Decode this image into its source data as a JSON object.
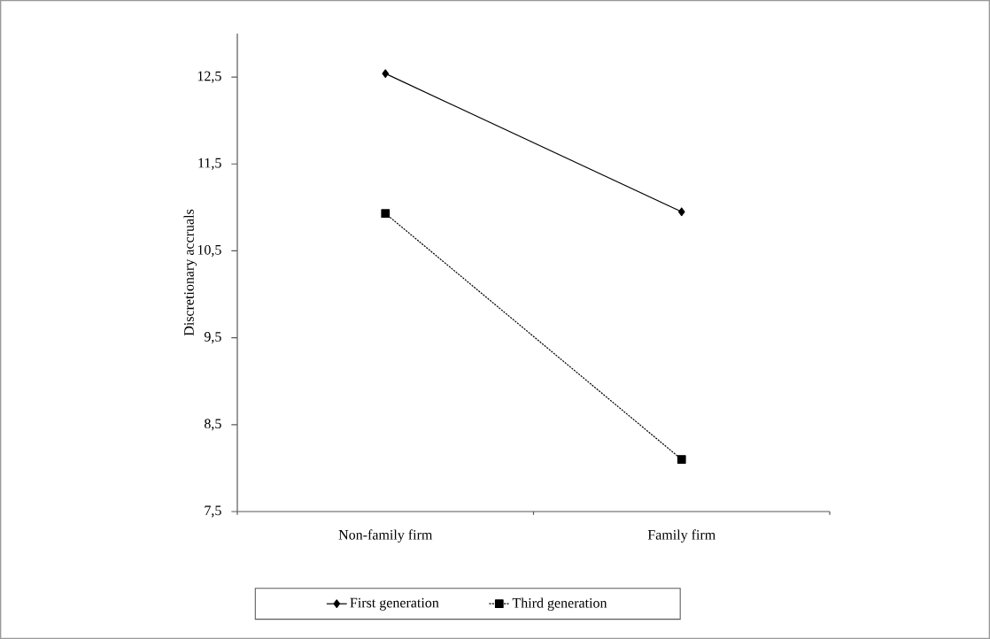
{
  "chart_data": {
    "type": "line",
    "ylabel": "Discretionary accruals",
    "categories": [
      "Non-family firm",
      "Family firm"
    ],
    "series": [
      {
        "name": "First generation",
        "color": "#000000",
        "values": [
          12.54,
          10.95
        ],
        "marker": "diamond",
        "line_style": "solid"
      },
      {
        "name": "Third generation",
        "color": "#000000",
        "values": [
          10.93,
          8.1
        ],
        "marker": "square",
        "line_style": "dashed"
      }
    ],
    "ylim": [
      7.5,
      13
    ],
    "yticks": [
      {
        "value": 7.5,
        "label": "7,5"
      },
      {
        "value": 8.5,
        "label": "8,5"
      },
      {
        "value": 9.5,
        "label": "9,5"
      },
      {
        "value": 10.5,
        "label": "10,5"
      },
      {
        "value": 11.5,
        "label": "11,5"
      },
      {
        "value": 12.5,
        "label": "12,5"
      }
    ],
    "grid": false,
    "legend": "bottom"
  }
}
